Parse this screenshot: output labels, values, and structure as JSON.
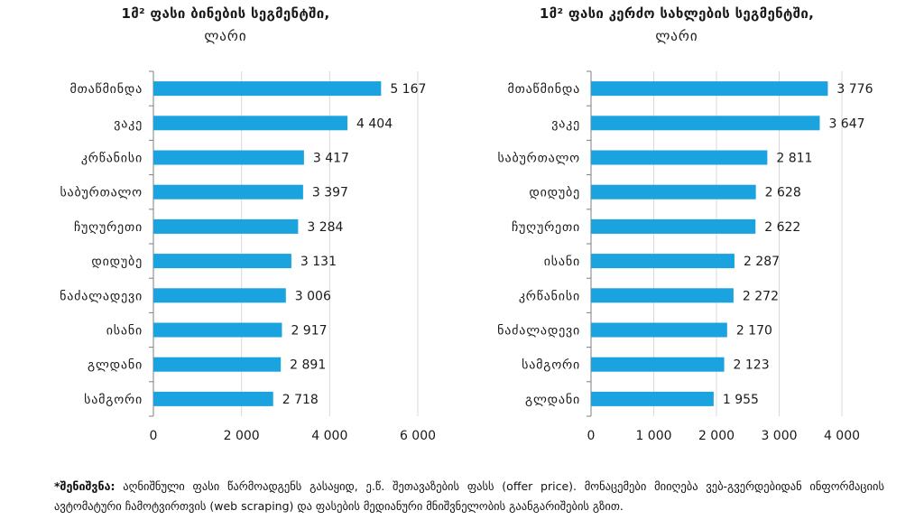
{
  "colors": {
    "bar": "#1aa3df",
    "grid": "#d9d9d9",
    "axis": "#7f7f7f",
    "text": "#1a1a1a"
  },
  "chart_data": [
    {
      "type": "bar",
      "orientation": "horizontal",
      "title": "1მ² ფასი ბინების სეგმენტში,",
      "subtitle": "ლარი",
      "categories": [
        "მთაწმინდა",
        "ვაკე",
        "კრწანისი",
        "საბურთალო",
        "ჩუღურეთი",
        "დიდუბე",
        "ნაძალადევი",
        "ისანი",
        "გლდანი",
        "სამგორი"
      ],
      "values": [
        5167,
        4404,
        3417,
        3397,
        3284,
        3131,
        3006,
        2917,
        2891,
        2718
      ],
      "value_labels": [
        "5 167",
        "4 404",
        "3 417",
        "3 397",
        "3 284",
        "3 131",
        "3 006",
        "2 917",
        "2 891",
        "2 718"
      ],
      "xlim": [
        0,
        6000
      ],
      "xticks": [
        0,
        2000,
        4000,
        6000
      ],
      "xtick_labels": [
        "0",
        "2 000",
        "4 000",
        "6 000"
      ],
      "grid": true
    },
    {
      "type": "bar",
      "orientation": "horizontal",
      "title": "1მ² ფასი კერძო სახლების სეგმენტში,",
      "subtitle": "ლარი",
      "categories": [
        "მთაწმინდა",
        "ვაკე",
        "საბურთალო",
        "დიდუბე",
        "ჩუღურეთი",
        "ისანი",
        "კრწანისი",
        "ნაძალადევი",
        "სამგორი",
        "გლდანი"
      ],
      "values": [
        3776,
        3647,
        2811,
        2628,
        2622,
        2287,
        2272,
        2170,
        2123,
        1955
      ],
      "value_labels": [
        "3 776",
        "3 647",
        "2 811",
        "2 628",
        "2 622",
        "2 287",
        "2 272",
        "2 170",
        "2 123",
        "1 955"
      ],
      "xlim": [
        0,
        4000
      ],
      "xticks": [
        0,
        1000,
        2000,
        3000,
        4000
      ],
      "xtick_labels": [
        "0",
        "1 000",
        "2 000",
        "3 000",
        "4 000"
      ],
      "grid": true
    }
  ],
  "footnote": {
    "label": "*შენიშვნა:",
    "text": " აღნიშნული ფასი წარმოადგენს გასაყიდ, ე.წ. შეთავაზების ფასს (offer price). მონაცემები მიიღება ვებ-გვერდებიდან ინფორმაციის ავტომატური ჩამოტვირთვის (web scraping) და ფასების მედიანური მნიშვნელობის გაანგარიშების გზით."
  }
}
